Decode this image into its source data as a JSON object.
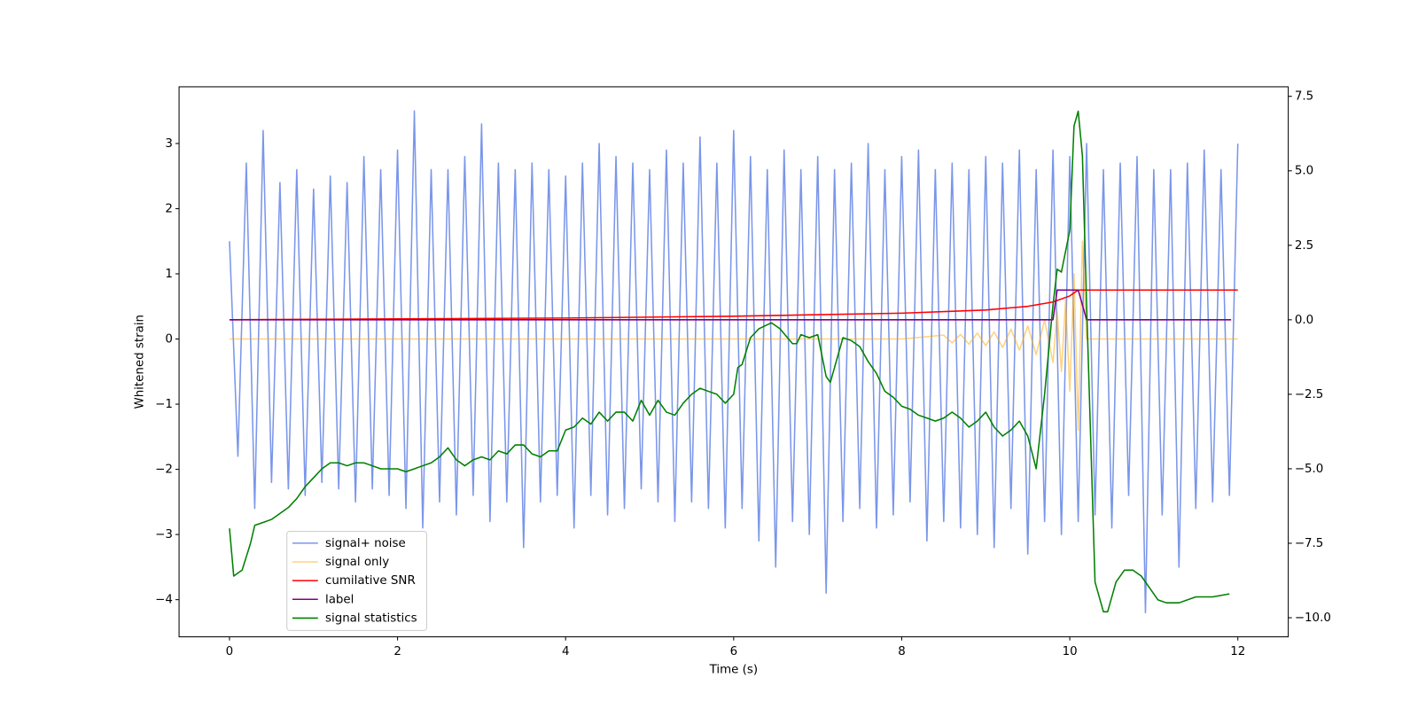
{
  "chart_data": {
    "type": "line",
    "xlabel": "Time (s)",
    "ylabel": "Whitened strain",
    "xlim": [
      -0.6,
      12.6
    ],
    "xticks": [
      0,
      2,
      4,
      6,
      8,
      10,
      12
    ],
    "ylim": [
      -4.57,
      3.87
    ],
    "yticks": [
      {
        "value": -4,
        "label": "−4"
      },
      {
        "value": -3,
        "label": "−3"
      },
      {
        "value": -2,
        "label": "−2"
      },
      {
        "value": -1,
        "label": "−1"
      },
      0,
      1,
      2,
      3
    ],
    "y2lim": [
      -10.64,
      7.82
    ],
    "y2ticks": [
      {
        "value": -10,
        "label": "−10.0"
      },
      {
        "value": -7.5,
        "label": "−7.5"
      },
      {
        "value": -5,
        "label": "−5.0"
      },
      {
        "value": -2.5,
        "label": "−2.5"
      },
      {
        "value": 0,
        "label": "0.0"
      },
      {
        "value": 2.5,
        "label": "2.5"
      },
      {
        "value": 5,
        "label": "5.0"
      },
      {
        "value": 7.5,
        "label": "7.5"
      }
    ],
    "legend": "lower left",
    "series": [
      {
        "name": "signal+ noise",
        "color": "#4169e1",
        "alpha": 0.7,
        "x": [
          0,
          0.1,
          0.2,
          0.3,
          0.4,
          0.5,
          0.6,
          0.7,
          0.8,
          0.9,
          1,
          1.1,
          1.2,
          1.3,
          1.4,
          1.5,
          1.6,
          1.7,
          1.8,
          1.9,
          2,
          2.1,
          2.2,
          2.3,
          2.4,
          2.5,
          2.6,
          2.7,
          2.8,
          2.9,
          3,
          3.1,
          3.2,
          3.3,
          3.4,
          3.5,
          3.6,
          3.7,
          3.8,
          3.9,
          4,
          4.1,
          4.2,
          4.3,
          4.4,
          4.5,
          4.6,
          4.7,
          4.8,
          4.9,
          5,
          5.1,
          5.2,
          5.3,
          5.4,
          5.5,
          5.6,
          5.7,
          5.8,
          5.9,
          6,
          6.1,
          6.2,
          6.3,
          6.4,
          6.5,
          6.6,
          6.7,
          6.8,
          6.9,
          7,
          7.1,
          7.2,
          7.3,
          7.4,
          7.5,
          7.6,
          7.7,
          7.8,
          7.9,
          8,
          8.1,
          8.2,
          8.3,
          8.4,
          8.5,
          8.6,
          8.7,
          8.8,
          8.9,
          9,
          9.1,
          9.2,
          9.3,
          9.4,
          9.5,
          9.6,
          9.7,
          9.8,
          9.9,
          10,
          10.1,
          10.2,
          10.3,
          10.4,
          10.5,
          10.6,
          10.7,
          10.8,
          10.9,
          11,
          11.1,
          11.2,
          11.3,
          11.4,
          11.5,
          11.6,
          11.7,
          11.8,
          11.9,
          12
        ],
        "values": [
          1.5,
          -1.8,
          2.7,
          -2.6,
          3.2,
          -2.2,
          2.4,
          -2.3,
          2.6,
          -2.4,
          2.3,
          -2.2,
          2.5,
          -2.3,
          2.4,
          -2.5,
          2.8,
          -2.3,
          2.6,
          -2.4,
          2.9,
          -2.6,
          3.5,
          -2.9,
          2.6,
          -2.5,
          2.6,
          -2.7,
          2.8,
          -2.4,
          3.3,
          -2.8,
          2.7,
          -2.5,
          2.6,
          -3.2,
          2.7,
          -2.5,
          2.6,
          -2.4,
          2.5,
          -2.9,
          2.7,
          -2.4,
          3.0,
          -2.7,
          2.8,
          -2.6,
          2.7,
          -2.3,
          2.6,
          -2.5,
          2.9,
          -2.8,
          2.7,
          -2.5,
          3.1,
          -2.6,
          2.7,
          -2.9,
          3.2,
          -2.6,
          2.8,
          -3.1,
          2.6,
          -3.5,
          2.9,
          -2.8,
          2.6,
          -3.0,
          2.8,
          -3.9,
          2.6,
          -2.8,
          2.7,
          -2.6,
          3.0,
          -2.9,
          2.6,
          -2.7,
          2.8,
          -2.5,
          2.9,
          -3.1,
          2.6,
          -2.8,
          2.7,
          -2.9,
          2.6,
          -3.0,
          2.8,
          -3.2,
          2.7,
          -2.6,
          2.9,
          -3.3,
          2.6,
          -2.8,
          2.9,
          -3.0,
          2.8,
          -2.8,
          3.0,
          -2.7,
          2.6,
          -2.9,
          2.7,
          -2.4,
          2.8,
          -4.2,
          2.6,
          -2.7,
          2.6,
          -3.5,
          2.7,
          -2.6,
          2.9,
          -2.5,
          2.6,
          -2.4,
          3.0
        ]
      },
      {
        "name": "signal only",
        "color": "#ffa500",
        "alpha": 0.5,
        "x": [
          0,
          8,
          8.5,
          8.6,
          8.7,
          8.8,
          8.9,
          9,
          9.1,
          9.2,
          9.3,
          9.4,
          9.5,
          9.6,
          9.7,
          9.8,
          9.85,
          9.9,
          9.95,
          10,
          10.05,
          10.1,
          10.15,
          10.2,
          12
        ],
        "values": [
          0,
          0,
          0.06,
          -0.06,
          0.07,
          -0.08,
          0.09,
          -0.1,
          0.11,
          -0.13,
          0.15,
          -0.17,
          0.2,
          -0.24,
          0.29,
          -0.36,
          0.42,
          -0.5,
          0.6,
          -0.8,
          1.0,
          -1.4,
          1.5,
          0,
          0
        ]
      },
      {
        "name": "cumilative SNR",
        "color": "#ff0000",
        "alpha": 1,
        "axis": "y2",
        "x": [
          0,
          2,
          4,
          6,
          8,
          9,
          9.5,
          9.8,
          10,
          10.1,
          12
        ],
        "values": [
          0,
          0.03,
          0.06,
          0.12,
          0.22,
          0.33,
          0.45,
          0.6,
          0.8,
          1.0,
          1.0
        ]
      },
      {
        "name": "label",
        "color": "#800080",
        "alpha": 1,
        "axis": "y2",
        "x": [
          0,
          9.8,
          9.85,
          10.1,
          10.2,
          11.92
        ],
        "values": [
          0,
          0,
          1,
          1,
          0,
          0
        ]
      },
      {
        "name": "signal statistics",
        "color": "#008000",
        "alpha": 1,
        "axis": "y2",
        "x": [
          0,
          0.05,
          0.15,
          0.25,
          0.3,
          0.4,
          0.5,
          0.6,
          0.7,
          0.8,
          0.9,
          1,
          1.1,
          1.2,
          1.3,
          1.4,
          1.5,
          1.6,
          1.7,
          1.8,
          1.9,
          2,
          2.1,
          2.2,
          2.3,
          2.4,
          2.5,
          2.6,
          2.7,
          2.8,
          2.9,
          3,
          3.1,
          3.2,
          3.3,
          3.4,
          3.5,
          3.6,
          3.7,
          3.8,
          3.9,
          4,
          4.1,
          4.2,
          4.3,
          4.4,
          4.5,
          4.6,
          4.7,
          4.8,
          4.9,
          5,
          5.1,
          5.2,
          5.3,
          5.4,
          5.5,
          5.6,
          5.7,
          5.8,
          5.9,
          6,
          6.05,
          6.1,
          6.2,
          6.3,
          6.45,
          6.55,
          6.7,
          6.75,
          6.8,
          6.9,
          7,
          7.1,
          7.15,
          7.3,
          7.4,
          7.5,
          7.6,
          7.7,
          7.8,
          7.9,
          8,
          8.1,
          8.2,
          8.3,
          8.4,
          8.5,
          8.6,
          8.7,
          8.8,
          8.9,
          9,
          9.1,
          9.2,
          9.3,
          9.4,
          9.5,
          9.6,
          9.7,
          9.8,
          9.85,
          9.9,
          10,
          10.05,
          10.1,
          10.15,
          10.2,
          10.3,
          10.4,
          10.45,
          10.55,
          10.65,
          10.75,
          10.85,
          10.95,
          11.05,
          11.15,
          11.3,
          11.5,
          11.7,
          11.9
        ],
        "values": [
          -7.0,
          -8.6,
          -8.4,
          -7.5,
          -6.9,
          -6.8,
          -6.7,
          -6.5,
          -6.3,
          -6.0,
          -5.6,
          -5.3,
          -5.0,
          -4.8,
          -4.8,
          -4.9,
          -4.8,
          -4.8,
          -4.9,
          -5.0,
          -5.0,
          -5.0,
          -5.1,
          -5.0,
          -4.9,
          -4.8,
          -4.6,
          -4.3,
          -4.7,
          -4.9,
          -4.7,
          -4.6,
          -4.7,
          -4.4,
          -4.5,
          -4.2,
          -4.2,
          -4.5,
          -4.6,
          -4.4,
          -4.4,
          -3.7,
          -3.6,
          -3.3,
          -3.5,
          -3.1,
          -3.4,
          -3.1,
          -3.1,
          -3.4,
          -2.7,
          -3.2,
          -2.7,
          -3.1,
          -3.2,
          -2.8,
          -2.5,
          -2.3,
          -2.4,
          -2.5,
          -2.8,
          -2.5,
          -1.6,
          -1.5,
          -0.6,
          -0.3,
          -0.1,
          -0.3,
          -0.8,
          -0.8,
          -0.5,
          -0.6,
          -0.5,
          -1.9,
          -2.1,
          -0.6,
          -0.7,
          -0.9,
          -1.4,
          -1.8,
          -2.4,
          -2.6,
          -2.9,
          -3.0,
          -3.2,
          -3.3,
          -3.4,
          -3.3,
          -3.1,
          -3.3,
          -3.6,
          -3.4,
          -3.1,
          -3.6,
          -3.9,
          -3.7,
          -3.4,
          -3.9,
          -5.0,
          -2.5,
          0.5,
          1.7,
          1.6,
          3.0,
          6.5,
          7.0,
          5.5,
          0.5,
          -8.8,
          -9.8,
          -9.8,
          -8.8,
          -8.4,
          -8.4,
          -8.6,
          -9.0,
          -9.4,
          -9.5,
          -9.5,
          -9.3,
          -9.3,
          -9.2
        ]
      }
    ]
  }
}
